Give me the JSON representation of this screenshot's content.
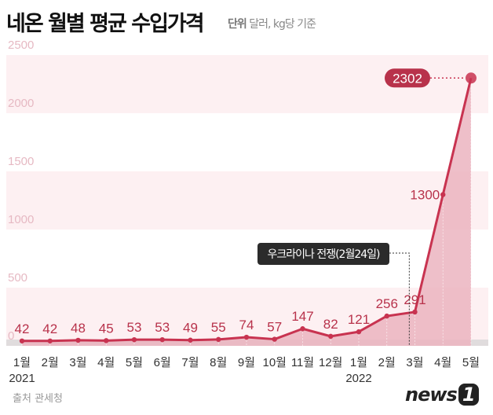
{
  "chart_data": {
    "type": "line",
    "title": "네온 월별 평균 수입가격",
    "unit_label": "단위",
    "unit": "달러, kg당 기준",
    "categories": [
      "1월",
      "2월",
      "3월",
      "4월",
      "5월",
      "6월",
      "7월",
      "8월",
      "9월",
      "10월",
      "11월",
      "12월",
      "1월",
      "2월",
      "3월",
      "4월",
      "5월"
    ],
    "year_labels": [
      {
        "index": 0,
        "label": "2021"
      },
      {
        "index": 12,
        "label": "2022"
      }
    ],
    "values": [
      42,
      42,
      48,
      45,
      53,
      53,
      49,
      55,
      74,
      57,
      147,
      82,
      121,
      256,
      291,
      1300,
      2302
    ],
    "yticks": [
      0,
      500,
      1000,
      1500,
      2000,
      2500
    ],
    "ylim": [
      0,
      2500
    ],
    "annotation": {
      "text": "우크라이나 전쟁(2월24일)",
      "position_index": 13.8
    },
    "highlight_index": 16,
    "colors": {
      "line": "#c83350",
      "area": "#ebb4c0",
      "band": "#fdf0f2",
      "label": "#b8324b"
    }
  },
  "source": {
    "label": "출처",
    "value": "관세청"
  },
  "logo": {
    "text": "news",
    "mark": "1"
  }
}
